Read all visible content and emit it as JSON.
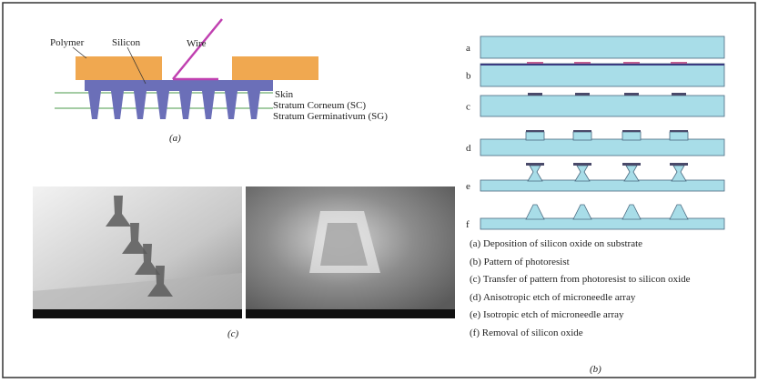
{
  "figure_a": {
    "labels": {
      "polymer": "Polymer",
      "silicon": "Silicon",
      "wire": "Wire",
      "skin": "Skin",
      "stratum_corneum": "Stratum Corneum (SC)",
      "stratum_germinativum": "Stratum Germinativum (SG)"
    },
    "caption": "(a)"
  },
  "figure_b": {
    "step_labels": [
      "a",
      "b",
      "c",
      "d",
      "e",
      "f"
    ],
    "steps": [
      "(a) Deposition of silicon oxide on substrate",
      "(b) Pattern of photoresist",
      "(c) Transfer of pattern from photoresist to silicon oxide",
      "(d) Anisotropic etch of microneedle array",
      "(e) Isotropic etch of microneedle array",
      "(f) Removal of silicon oxide"
    ],
    "caption": "(b)"
  },
  "figure_c": {
    "caption": "(c)"
  }
}
